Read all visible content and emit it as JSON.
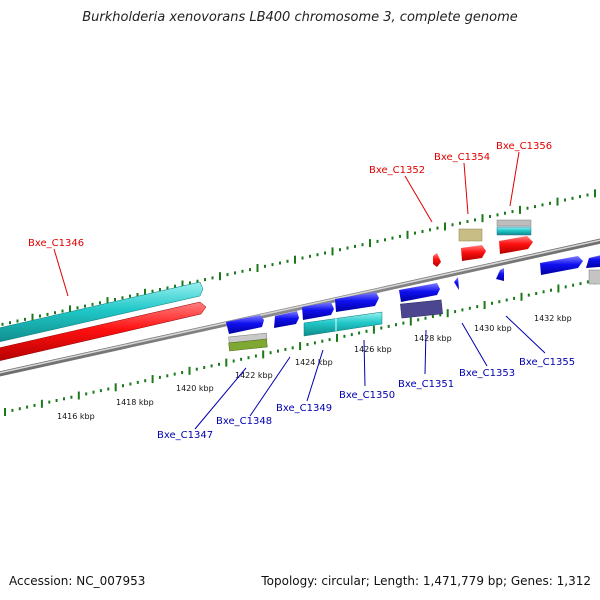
{
  "title": "Burkholderia xenovorans LB400 chromosome 3, complete genome",
  "footer": {
    "accession": "Accession: NC_007953",
    "summary": "Topology: circular; Length: 1,471,779 bp; Genes: 1,312"
  },
  "scale_labels": [
    "1416 kbp",
    "1418 kbp",
    "1420 kbp",
    "1422 kbp",
    "1424 kbp",
    "1426 kbp",
    "1428 kbp",
    "1430 kbp",
    "1432 kbp"
  ],
  "gene_labels_top": [
    "Bxe_C1346",
    "Bxe_C1352",
    "Bxe_C1354",
    "Bxe_C1356"
  ],
  "gene_labels_bottom": [
    "Bxe_C1347",
    "Bxe_C1348",
    "Bxe_C1349",
    "Bxe_C1350",
    "Bxe_C1351",
    "Bxe_C1353",
    "Bxe_C1355"
  ],
  "colors": {
    "cds_forward": "#e60000",
    "cds_reverse": "#1a1ae0",
    "gene": "#1fc8c8",
    "tick": "#1a7a1a",
    "backbone": "#8a8a8a",
    "label_top": "#e00000",
    "label_bottom": "#0000b0"
  }
}
